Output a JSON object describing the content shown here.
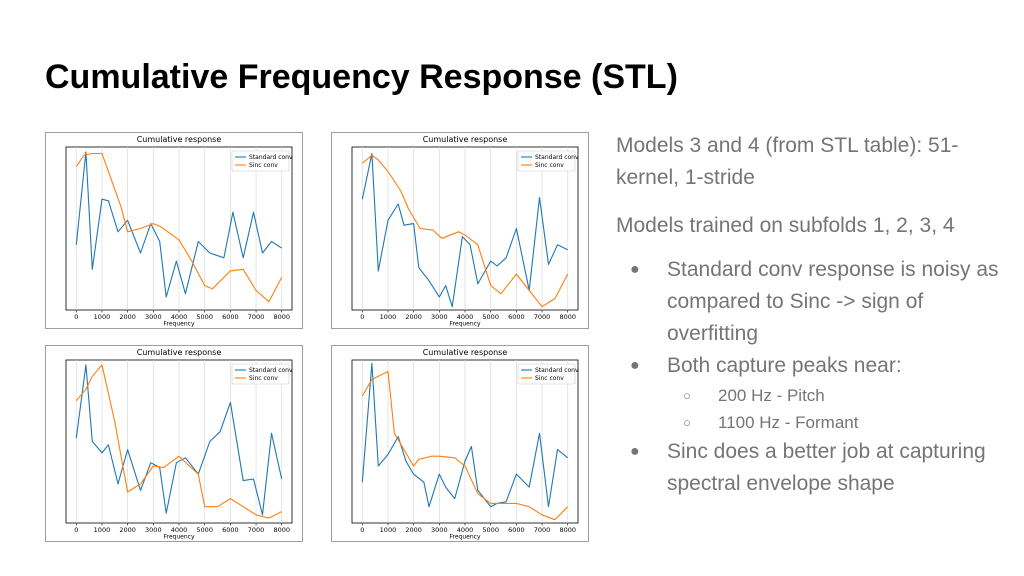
{
  "slide": {
    "title": "Cumulative Frequency Response (STL)"
  },
  "panel": {
    "p1": "Models 3 and 4 (from STL table): 51-kernel, 1-stride",
    "p2": "Models trained on subfolds 1, 2, 3, 4",
    "bullets": [
      "Standard conv response is noisy as compared to Sinc -> sign of overfitting",
      "Both capture peaks near:",
      "Sinc does a better job at capturing spectral envelope shape"
    ],
    "sub_bullets": [
      "200 Hz - Pitch",
      "1100 Hz - Formant"
    ]
  },
  "colors": {
    "standard_conv": "#1f77b4",
    "sinc_conv": "#ff7f0e",
    "panel_text": "#757575"
  },
  "chart_data": [
    {
      "type": "line",
      "title": "Cumulative response",
      "xlabel": "Frequency",
      "ylabel": "",
      "xlim": [
        -400,
        8400
      ],
      "ylim": [
        0,
        1
      ],
      "xticks": [
        "0",
        "1000",
        "2000",
        "3000",
        "4000",
        "5000",
        "6000",
        "7000",
        "8000"
      ],
      "grid": "vertical",
      "legend": "top-right",
      "series": [
        {
          "name": "Standard conv",
          "x": [
            0,
            375,
            625,
            1000,
            1250,
            1625,
            2000,
            2500,
            2900,
            3250,
            3500,
            3900,
            4250,
            4750,
            5200,
            5750,
            6100,
            6500,
            6900,
            7250,
            7600,
            8000
          ],
          "y": [
            0.4,
            0.97,
            0.25,
            0.68,
            0.67,
            0.48,
            0.55,
            0.35,
            0.53,
            0.42,
            0.08,
            0.3,
            0.1,
            0.42,
            0.35,
            0.32,
            0.6,
            0.32,
            0.6,
            0.35,
            0.42,
            0.38
          ]
        },
        {
          "name": "Sinc conv",
          "x": [
            0,
            300,
            625,
            1000,
            1750,
            2000,
            2500,
            3000,
            3300,
            4000,
            4500,
            5000,
            5300,
            6000,
            6500,
            7000,
            7500,
            8000
          ],
          "y": [
            0.88,
            0.95,
            0.96,
            0.96,
            0.63,
            0.48,
            0.5,
            0.53,
            0.51,
            0.43,
            0.3,
            0.15,
            0.13,
            0.24,
            0.25,
            0.12,
            0.05,
            0.2
          ]
        }
      ]
    },
    {
      "type": "line",
      "title": "Cumulative response",
      "xlabel": "Frequency",
      "ylabel": "",
      "xlim": [
        -400,
        8400
      ],
      "ylim": [
        0,
        1
      ],
      "xticks": [
        "0",
        "1000",
        "2000",
        "3000",
        "4000",
        "5000",
        "6000",
        "7000",
        "8000"
      ],
      "grid": "vertical",
      "legend": "top-right",
      "series": [
        {
          "name": "Standard conv",
          "x": [
            0,
            375,
            625,
            1000,
            1400,
            1625,
            2000,
            2200,
            2600,
            3000,
            3250,
            3500,
            3900,
            4200,
            4500,
            5000,
            5250,
            5600,
            6000,
            6500,
            6900,
            7250,
            7600,
            8000
          ],
          "y": [
            0.68,
            0.96,
            0.24,
            0.55,
            0.65,
            0.52,
            0.53,
            0.26,
            0.18,
            0.08,
            0.15,
            0.02,
            0.45,
            0.4,
            0.16,
            0.3,
            0.27,
            0.32,
            0.5,
            0.12,
            0.69,
            0.28,
            0.4,
            0.37
          ]
        },
        {
          "name": "Sinc conv",
          "x": [
            0,
            375,
            625,
            1000,
            1500,
            1800,
            2250,
            2750,
            3100,
            3750,
            4000,
            4500,
            5000,
            5400,
            6000,
            6500,
            7000,
            7500,
            8000
          ],
          "y": [
            0.9,
            0.95,
            0.92,
            0.85,
            0.73,
            0.62,
            0.5,
            0.49,
            0.44,
            0.48,
            0.46,
            0.4,
            0.15,
            0.1,
            0.22,
            0.12,
            0.02,
            0.07,
            0.22
          ]
        }
      ]
    },
    {
      "type": "line",
      "title": "Cumulative response",
      "xlabel": "Frequency",
      "ylabel": "",
      "xlim": [
        -400,
        8400
      ],
      "ylim": [
        0,
        1
      ],
      "xticks": [
        "0",
        "1000",
        "2000",
        "3000",
        "4000",
        "5000",
        "6000",
        "7000",
        "8000"
      ],
      "grid": "vertical",
      "legend": "top-right",
      "series": [
        {
          "name": "Standard conv",
          "x": [
            0,
            375,
            625,
            1000,
            1250,
            1625,
            2000,
            2500,
            2900,
            3250,
            3500,
            3900,
            4250,
            4750,
            5200,
            5600,
            6000,
            6500,
            6900,
            7250,
            7600,
            8000
          ],
          "y": [
            0.52,
            0.97,
            0.5,
            0.43,
            0.48,
            0.24,
            0.45,
            0.2,
            0.37,
            0.34,
            0.06,
            0.37,
            0.4,
            0.3,
            0.5,
            0.56,
            0.74,
            0.26,
            0.27,
            0.05,
            0.55,
            0.27
          ]
        },
        {
          "name": "Sinc conv",
          "x": [
            0,
            375,
            625,
            1000,
            1500,
            2000,
            2500,
            3000,
            3400,
            4000,
            4400,
            4750,
            5000,
            5500,
            6000,
            6500,
            7000,
            7500,
            8000
          ],
          "y": [
            0.75,
            0.82,
            0.9,
            0.97,
            0.62,
            0.19,
            0.24,
            0.35,
            0.34,
            0.41,
            0.35,
            0.3,
            0.1,
            0.1,
            0.15,
            0.1,
            0.05,
            0.03,
            0.07
          ]
        }
      ]
    },
    {
      "type": "line",
      "title": "Cumulative response",
      "xlabel": "Frequency",
      "ylabel": "",
      "xlim": [
        -400,
        8400
      ],
      "ylim": [
        0,
        1
      ],
      "xticks": [
        "0",
        "1000",
        "2000",
        "3000",
        "4000",
        "5000",
        "6000",
        "7000",
        "8000"
      ],
      "grid": "vertical",
      "legend": "top-right",
      "series": [
        {
          "name": "Standard conv",
          "x": [
            0,
            375,
            625,
            1000,
            1400,
            1700,
            2000,
            2400,
            2600,
            3000,
            3250,
            3600,
            4000,
            4250,
            4500,
            5000,
            5250,
            5600,
            6000,
            6500,
            6900,
            7250,
            7600,
            8000
          ],
          "y": [
            0.25,
            0.98,
            0.35,
            0.42,
            0.53,
            0.38,
            0.3,
            0.25,
            0.1,
            0.3,
            0.22,
            0.15,
            0.38,
            0.47,
            0.2,
            0.1,
            0.12,
            0.13,
            0.3,
            0.22,
            0.55,
            0.1,
            0.45,
            0.4
          ]
        },
        {
          "name": "Sinc conv",
          "x": [
            0,
            375,
            625,
            1000,
            1250,
            1625,
            2000,
            2200,
            2700,
            3000,
            3600,
            4000,
            4500,
            5000,
            5600,
            6000,
            6500,
            7000,
            7500,
            8000
          ],
          "y": [
            0.78,
            0.88,
            0.9,
            0.93,
            0.55,
            0.45,
            0.35,
            0.39,
            0.41,
            0.41,
            0.4,
            0.35,
            0.18,
            0.12,
            0.12,
            0.12,
            0.1,
            0.05,
            0.02,
            0.1
          ]
        }
      ]
    }
  ]
}
